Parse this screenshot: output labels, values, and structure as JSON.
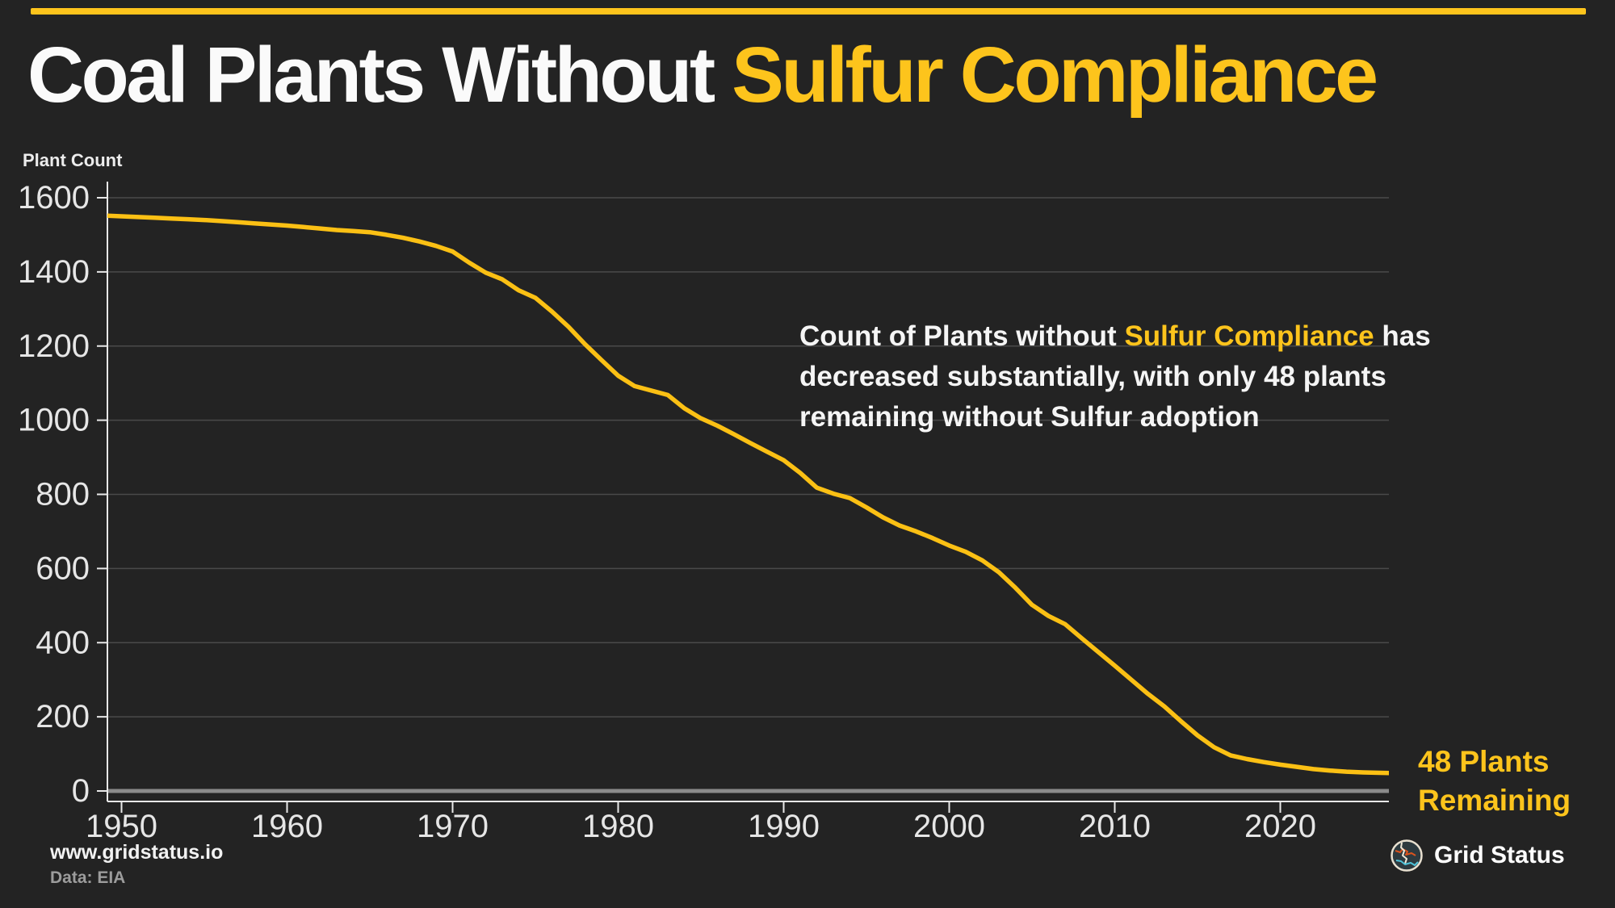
{
  "colors": {
    "background": "#232323",
    "accent_yellow": "#fdc41c",
    "line_yellow": "#fbc014",
    "grid_line": "#4a4a4a",
    "zero_line": "#8a8a8a",
    "axis_line": "#e8e8e8",
    "tick_label": "#e6e6e6",
    "logo_ring": "#e8e0d0",
    "logo_bg": "#2d3a3f",
    "logo_orange": "#d9531e",
    "logo_cream": "#efe8d8",
    "logo_cyan": "#4fc3d9"
  },
  "title": {
    "white_part": "Coal Plants Without ",
    "yellow_part": "Sulfur Compliance"
  },
  "annotation": {
    "line1_pre": "Count of Plants without ",
    "line1_highlight": "Sulfur Compliance",
    "line1_post": " has",
    "line2": "decreased substantially, with only 48 plants",
    "line3": "remaining without Sulfur adoption"
  },
  "callout": {
    "line1": "48 Plants",
    "line2": "Remaining"
  },
  "footer": {
    "site": "www.gridstatus.io",
    "source": "Data: EIA",
    "brand": "Grid Status"
  },
  "chart_data": {
    "type": "line",
    "title": "Coal Plants Without Sulfur Compliance",
    "ylabel": "Plant Count",
    "xlabel": "",
    "grid": true,
    "legend": false,
    "ylim": [
      0,
      1600
    ],
    "xlim": [
      1949,
      2027
    ],
    "yticks": [
      0,
      200,
      400,
      600,
      800,
      1000,
      1200,
      1400,
      1600
    ],
    "xticks": [
      1950,
      1960,
      1970,
      1980,
      1990,
      2000,
      2010,
      2020
    ],
    "end_label_value": 48,
    "x": [
      1949,
      1950,
      1951,
      1952,
      1953,
      1954,
      1955,
      1956,
      1957,
      1958,
      1959,
      1960,
      1961,
      1962,
      1963,
      1964,
      1965,
      1966,
      1967,
      1968,
      1969,
      1970,
      1971,
      1972,
      1973,
      1974,
      1975,
      1976,
      1977,
      1978,
      1979,
      1980,
      1981,
      1982,
      1983,
      1984,
      1985,
      1986,
      1987,
      1988,
      1989,
      1990,
      1991,
      1992,
      1993,
      1994,
      1995,
      1996,
      1997,
      1998,
      1999,
      2000,
      2001,
      2002,
      2003,
      2004,
      2005,
      2006,
      2007,
      2008,
      2009,
      2010,
      2011,
      2012,
      2013,
      2014,
      2015,
      2016,
      2017,
      2018,
      2019,
      2020,
      2021,
      2022,
      2023,
      2024,
      2025,
      2026,
      2027
    ],
    "series": [
      {
        "name": "Plants without Sulfur Compliance",
        "values": [
          1552,
          1550,
          1548,
          1546,
          1544,
          1542,
          1540,
          1537,
          1534,
          1531,
          1528,
          1525,
          1521,
          1517,
          1513,
          1510,
          1507,
          1500,
          1492,
          1482,
          1470,
          1455,
          1425,
          1398,
          1380,
          1350,
          1330,
          1293,
          1252,
          1205,
          1162,
          1120,
          1092,
          1080,
          1068,
          1032,
          1005,
          985,
          962,
          938,
          915,
          892,
          858,
          818,
          802,
          790,
          765,
          738,
          716,
          700,
          682,
          662,
          645,
          622,
          590,
          548,
          502,
          472,
          450,
          412,
          375,
          338,
          300,
          262,
          228,
          188,
          150,
          118,
          96,
          86,
          78,
          71,
          65,
          59,
          55,
          52,
          50,
          49,
          48
        ]
      }
    ]
  }
}
